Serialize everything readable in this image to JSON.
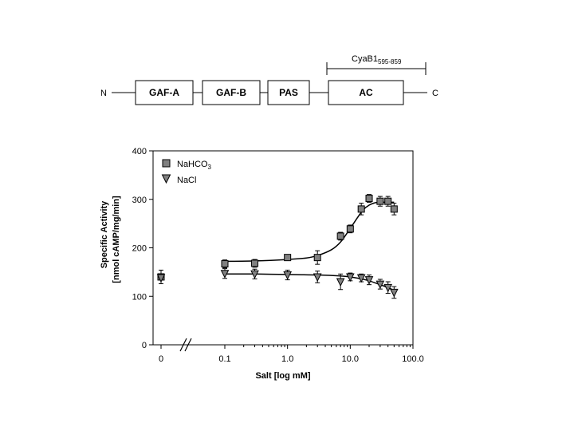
{
  "domain_diagram": {
    "n_terminus": "N",
    "c_terminus": "C",
    "domains": [
      "GAF-A",
      "GAF-B",
      "PAS",
      "AC"
    ],
    "construct_label": "CyaB1",
    "construct_subscript": "595-859"
  },
  "chart_data": {
    "type": "scatter",
    "ylabel_line1": "Specific Activity",
    "ylabel_line2": "[nmol cAMP/mg/min]",
    "xlabel": "Salt [log mM]",
    "x_scale": "log",
    "xlim": [
      0.1,
      100
    ],
    "ylim": [
      0,
      400
    ],
    "x_ticks": [
      "0",
      "0.1",
      "1.0",
      "10.0",
      "100.0"
    ],
    "y_ticks": [
      "0",
      "100",
      "200",
      "300",
      "400"
    ],
    "axis_break": true,
    "grid": false,
    "legend_position": "top-left",
    "zero_point": {
      "x": 0,
      "y": 140,
      "err": 14
    },
    "series": [
      {
        "name": "NaHCO",
        "name_subscript": "3",
        "marker": "square",
        "x": [
          0.1,
          0.3,
          1.0,
          3.0,
          7.0,
          10.0,
          15.0,
          20.0,
          30.0,
          40.0,
          50.0
        ],
        "y": [
          167,
          168,
          180,
          180,
          224,
          239,
          280,
          302,
          296,
          296,
          280
        ],
        "err": [
          8,
          8,
          6,
          14,
          8,
          8,
          12,
          8,
          10,
          10,
          12
        ],
        "fit_x": [
          0.1,
          0.3,
          1.0,
          2.0,
          3.0,
          5.0,
          7.0,
          10.0,
          13.0,
          16.0,
          20.0,
          25.0,
          30.0,
          40.0,
          50.0
        ],
        "fit_y": [
          172,
          173,
          176,
          179,
          184,
          196,
          212,
          240,
          262,
          278,
          288,
          293,
          294,
          294,
          294
        ]
      },
      {
        "name": "NaCl",
        "name_subscript": "",
        "marker": "triangle-down",
        "x": [
          0.1,
          0.3,
          1.0,
          3.0,
          7.0,
          10.0,
          15.0,
          20.0,
          30.0,
          40.0,
          50.0
        ],
        "y": [
          147,
          146,
          144,
          140,
          130,
          140,
          138,
          134,
          125,
          118,
          108
        ],
        "err": [
          10,
          10,
          10,
          12,
          16,
          8,
          8,
          10,
          10,
          12,
          12
        ],
        "fit_x": [
          0.1,
          0.3,
          1.0,
          3.0,
          7.0,
          10.0,
          15.0,
          20.0,
          30.0,
          40.0,
          50.0
        ],
        "fit_y": [
          146,
          146,
          145,
          144,
          142,
          140,
          136,
          132,
          124,
          118,
          112
        ]
      }
    ]
  }
}
